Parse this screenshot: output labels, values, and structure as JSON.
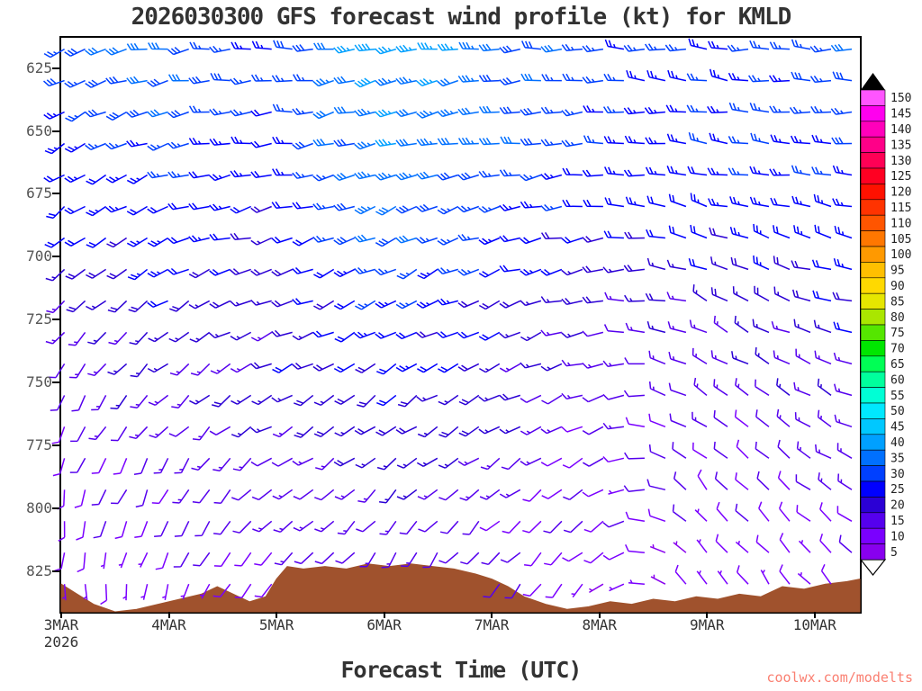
{
  "title": "2026030300 GFS forecast wind profile (kt) for KMLD",
  "x_axis_title": "Forecast Time (UTC)",
  "year_label": "2026",
  "watermark": "coolwx.com/modelts",
  "colors": {
    "title": "#333333",
    "y_label": "#555555",
    "x_label": "#333333",
    "frame": "#000000",
    "terrain": "#a0522d",
    "watermark": "#fa8072",
    "colorbar_label": "#222222",
    "background": "#ffffff"
  },
  "axes": {
    "x_range": [
      3.0,
      10.42
    ],
    "p_range": [
      613,
      841
    ],
    "x_ticks": [
      {
        "day": 3,
        "label": "3MAR"
      },
      {
        "day": 4,
        "label": "4MAR"
      },
      {
        "day": 5,
        "label": "5MAR"
      },
      {
        "day": 6,
        "label": "6MAR"
      },
      {
        "day": 7,
        "label": "7MAR"
      },
      {
        "day": 8,
        "label": "8MAR"
      },
      {
        "day": 9,
        "label": "9MAR"
      },
      {
        "day": 10,
        "label": "10MAR"
      }
    ],
    "y_ticks": [
      {
        "p": 625,
        "label": "625"
      },
      {
        "p": 650,
        "label": "650"
      },
      {
        "p": 675,
        "label": "675"
      },
      {
        "p": 700,
        "label": "700"
      },
      {
        "p": 725,
        "label": "725"
      },
      {
        "p": 750,
        "label": "750"
      },
      {
        "p": 775,
        "label": "775"
      },
      {
        "p": 800,
        "label": "800"
      },
      {
        "p": 825,
        "label": "825"
      }
    ]
  },
  "colorbar": {
    "values": [
      5,
      10,
      15,
      20,
      25,
      30,
      35,
      40,
      45,
      50,
      55,
      60,
      65,
      70,
      75,
      80,
      85,
      90,
      95,
      100,
      105,
      110,
      115,
      120,
      125,
      130,
      135,
      140,
      145,
      150
    ],
    "colors": [
      "#8800ee",
      "#7a00ff",
      "#5500ee",
      "#2b00d5",
      "#0000ff",
      "#0040ff",
      "#0070ff",
      "#00a0ff",
      "#00c8ff",
      "#00e8ff",
      "#00ffd5",
      "#00ff9d",
      "#00ff55",
      "#00e600",
      "#55e600",
      "#aae600",
      "#e6e600",
      "#ffd900",
      "#ffbf00",
      "#ff9900",
      "#ff7700",
      "#ff5500",
      "#ff3300",
      "#ff1100",
      "#ff0022",
      "#ff0055",
      "#ff0088",
      "#ff00bb",
      "#ff00ee",
      "#ff55ff"
    ]
  },
  "chart_data": {
    "type": "wind-barb-time-height",
    "units": "kt",
    "x_days": [
      3,
      4,
      5,
      6,
      7,
      8,
      9,
      10,
      10.5
    ],
    "levels_hpa": [
      617,
      650,
      675,
      700,
      725,
      750,
      775,
      800,
      832
    ],
    "speed_kt": [
      [
        28,
        30,
        25,
        38,
        32,
        27,
        25,
        28,
        30
      ],
      [
        25,
        28,
        22,
        36,
        30,
        25,
        24,
        26,
        28
      ],
      [
        22,
        25,
        20,
        33,
        28,
        22,
        22,
        25,
        27
      ],
      [
        18,
        22,
        18,
        28,
        25,
        18,
        20,
        22,
        25
      ],
      [
        15,
        18,
        16,
        24,
        20,
        15,
        15,
        18,
        20
      ],
      [
        12,
        15,
        18,
        20,
        18,
        12,
        12,
        14,
        16
      ],
      [
        10,
        12,
        15,
        17,
        15,
        10,
        10,
        12,
        14
      ],
      [
        8,
        10,
        12,
        14,
        12,
        8,
        8,
        10,
        12
      ],
      [
        6,
        8,
        10,
        12,
        10,
        6,
        7,
        8,
        10
      ]
    ],
    "dir_deg_from": [
      [
        245,
        260,
        270,
        255,
        265,
        270,
        275,
        270,
        268
      ],
      [
        240,
        255,
        265,
        250,
        260,
        268,
        280,
        275,
        270
      ],
      [
        235,
        250,
        260,
        248,
        255,
        265,
        285,
        280,
        275
      ],
      [
        228,
        244,
        255,
        244,
        250,
        262,
        290,
        285,
        280
      ],
      [
        220,
        236,
        250,
        240,
        246,
        258,
        296,
        290,
        285
      ],
      [
        210,
        226,
        246,
        236,
        242,
        252,
        302,
        296,
        290
      ],
      [
        198,
        215,
        240,
        230,
        236,
        246,
        310,
        302,
        295
      ],
      [
        188,
        205,
        230,
        222,
        226,
        238,
        320,
        310,
        300
      ],
      [
        178,
        195,
        220,
        212,
        216,
        228,
        330,
        320,
        310
      ]
    ],
    "terrain": {
      "t_days": [
        3.0,
        3.15,
        3.3,
        3.5,
        3.7,
        3.9,
        4.1,
        4.3,
        4.45,
        4.6,
        4.75,
        4.9,
        5.0,
        5.1,
        5.25,
        5.45,
        5.65,
        5.85,
        6.05,
        6.25,
        6.45,
        6.65,
        6.85,
        7.0,
        7.15,
        7.3,
        7.5,
        7.7,
        7.9,
        8.1,
        8.3,
        8.5,
        8.7,
        8.9,
        9.1,
        9.3,
        9.5,
        9.7,
        9.9,
        10.1,
        10.3,
        10.42
      ],
      "p_top_hpa": [
        830,
        834,
        838,
        841,
        840,
        838,
        836,
        834,
        831,
        834,
        837,
        835,
        828,
        823,
        824,
        823,
        824,
        822,
        823,
        822,
        823,
        824,
        826,
        828,
        831,
        835,
        838,
        840,
        839,
        837,
        838,
        836,
        837,
        835,
        836,
        834,
        835,
        831,
        832,
        830,
        829,
        828
      ]
    },
    "barb_grid": {
      "t_start": 3.03,
      "t_step": 0.1925,
      "t_count": 39,
      "p_start": 617.5,
      "p_step": 12.5,
      "p_count": 18
    }
  }
}
